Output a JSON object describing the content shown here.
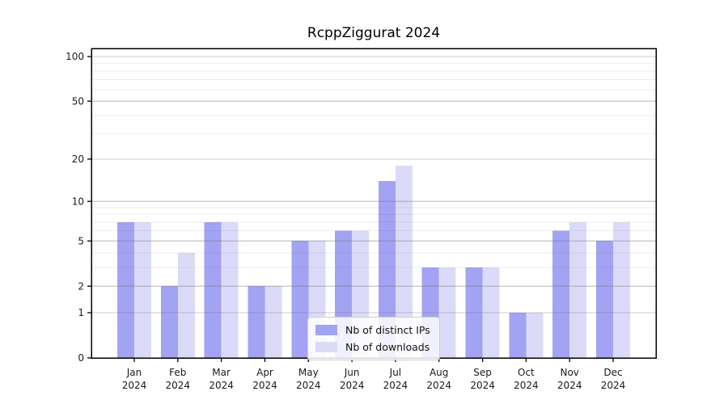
{
  "chart_data": {
    "type": "bar",
    "title": "RcppZiggurat 2024",
    "categories": [
      "Jan",
      "Feb",
      "Mar",
      "Apr",
      "May",
      "Jun",
      "Jul",
      "Aug",
      "Sep",
      "Oct",
      "Nov",
      "Dec"
    ],
    "x_year_label": "2024",
    "series": [
      {
        "key": "nb-of-distinct-ips",
        "name": "Nb of distinct IPs",
        "color": "#a3a3f3",
        "values": [
          7,
          2,
          7,
          2,
          5,
          6,
          14,
          3,
          3,
          1,
          6,
          5
        ]
      },
      {
        "key": "nb-of-downloads",
        "name": "Nb of downloads",
        "color": "#dbdbf9",
        "values": [
          7,
          4,
          7,
          2,
          5,
          6,
          18,
          3,
          3,
          1,
          7,
          7
        ]
      }
    ],
    "xlabel": "",
    "ylabel": "",
    "ylim": [
      0,
      100
    ],
    "y_scale": "log1p",
    "y_ticks": [
      0,
      1,
      2,
      5,
      10,
      20,
      50,
      100
    ],
    "y_minor_ticks": [
      3,
      4,
      6,
      7,
      8,
      9,
      30,
      40,
      60,
      70,
      80,
      90
    ],
    "grid": "on",
    "grid_major_color": "rgba(115,115,115,0.35)",
    "grid_minor_color": "rgba(0,0,0,0.065)",
    "axis_color": "#000000",
    "background_color": "#ffffff",
    "legend_position": "inside-bottom-center"
  }
}
